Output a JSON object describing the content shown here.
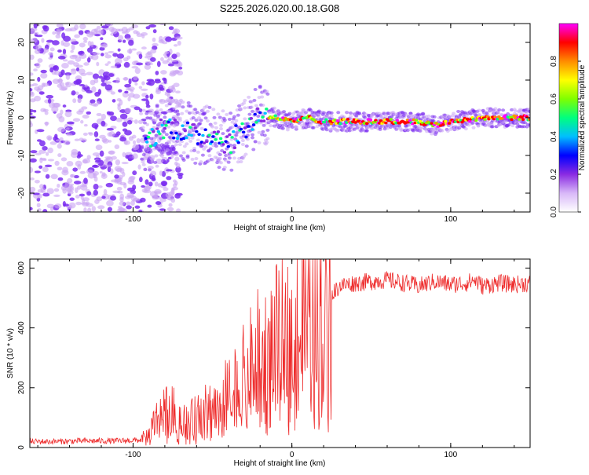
{
  "title": "S225.2026.020.00.18.G08",
  "colors": {
    "snr_line": "#ee2c2c",
    "points_purple": "#7a2cf0",
    "points_light": "#c9a4f4",
    "axis": "#000000"
  },
  "colorbar": {
    "label": "Normalized spectral amplitude",
    "range": [
      0.0,
      1.0
    ],
    "ticks": [
      "0.0",
      "0.2",
      "0.4",
      "0.6",
      "0.8"
    ],
    "tick_values": [
      0.0,
      0.2,
      0.4,
      0.6,
      0.8
    ],
    "stops": [
      "#ffffff",
      "#d8b8f8",
      "#8a2be2",
      "#0000ff",
      "#00bfff",
      "#00ff7f",
      "#7fff00",
      "#ffff00",
      "#ff8c00",
      "#ff0000",
      "#ff00ff"
    ]
  },
  "chart_data": [
    {
      "type": "heatmap",
      "title": "S225.2026.020.00.18.G08",
      "xlabel": "Height of straight line (km)",
      "ylabel": "Frequency (Hz)",
      "xlim": [
        -165,
        150
      ],
      "ylim": [
        -25,
        25
      ],
      "x_ticks": [
        -100,
        0,
        100
      ],
      "y_ticks": [
        -20,
        -10,
        0,
        10,
        20
      ],
      "x_tick_labels": [
        "-100",
        "0",
        "100"
      ],
      "y_tick_labels": [
        "-20",
        "-10",
        "0",
        "10",
        "20"
      ],
      "ridge": {
        "x": [
          -90,
          -80,
          -70,
          -60,
          -50,
          -40,
          -30,
          -20,
          -10,
          0,
          10,
          20,
          40,
          60,
          80,
          90,
          100,
          120,
          140,
          150
        ],
        "y": [
          -6,
          -2,
          -3,
          -5,
          -4,
          -7,
          -3,
          1,
          0,
          -1,
          0,
          -1,
          -1,
          -1,
          -1,
          -2,
          -1,
          0,
          0,
          0
        ]
      }
    },
    {
      "type": "line",
      "title": "",
      "xlabel": "Height of straight line (km)",
      "ylabel": "SNR (10 * v/v)",
      "xlim": [
        -165,
        150
      ],
      "ylim": [
        0,
        630
      ],
      "x_ticks": [
        -100,
        0,
        100
      ],
      "y_ticks": [
        0,
        200,
        400,
        600
      ],
      "x_tick_labels": [
        "-100",
        "0",
        "100"
      ],
      "y_tick_labels": [
        "0",
        "200",
        "400",
        "600"
      ],
      "series": [
        {
          "name": "SNR",
          "x": [
            -165,
            -150,
            -130,
            -110,
            -95,
            -90,
            -85,
            -80,
            -75,
            -70,
            -65,
            -60,
            -55,
            -50,
            -45,
            -40,
            -35,
            -30,
            -25,
            -20,
            -15,
            -10,
            -5,
            0,
            5,
            10,
            15,
            20,
            25,
            30,
            40,
            50,
            60,
            70,
            80,
            90,
            100,
            110,
            115,
            120,
            130,
            140,
            150
          ],
          "values": [
            20,
            20,
            22,
            22,
            25,
            40,
            90,
            120,
            110,
            90,
            80,
            95,
            110,
            130,
            150,
            160,
            190,
            220,
            260,
            290,
            300,
            330,
            340,
            360,
            380,
            390,
            440,
            480,
            510,
            540,
            550,
            555,
            560,
            550,
            540,
            555,
            545,
            550,
            560,
            540,
            550,
            545,
            550
          ]
        }
      ]
    }
  ]
}
